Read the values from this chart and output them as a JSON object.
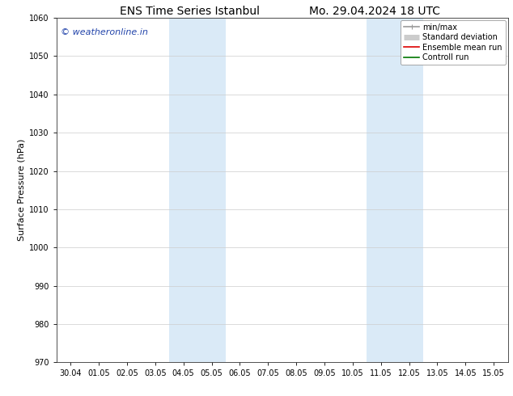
{
  "title_left": "ENS Time Series Istanbul",
  "title_right": "Mo. 29.04.2024 18 UTC",
  "ylabel": "Surface Pressure (hPa)",
  "ylim": [
    970,
    1060
  ],
  "yticks": [
    970,
    980,
    990,
    1000,
    1010,
    1020,
    1030,
    1040,
    1050,
    1060
  ],
  "x_labels": [
    "30.04",
    "01.05",
    "02.05",
    "03.05",
    "04.05",
    "05.05",
    "06.05",
    "07.05",
    "08.05",
    "09.05",
    "10.05",
    "11.05",
    "12.05",
    "13.05",
    "14.05",
    "15.05"
  ],
  "n_xticks": 16,
  "shaded_regions": [
    {
      "xmin": 4,
      "xmax": 6
    },
    {
      "xmin": 11,
      "xmax": 13
    }
  ],
  "shade_color": "#daeaf7",
  "watermark_text": "© weatheronline.in",
  "watermark_color": "#2244aa",
  "legend_entries": [
    {
      "label": "min/max",
      "color": "#999999",
      "lw": 1.2
    },
    {
      "label": "Standard deviation",
      "color": "#cccccc",
      "lw": 5
    },
    {
      "label": "Ensemble mean run",
      "color": "#dd0000",
      "lw": 1.2
    },
    {
      "label": "Controll run",
      "color": "#007700",
      "lw": 1.2
    }
  ],
  "grid_color": "#cccccc",
  "bg_color": "#ffffff",
  "title_fontsize": 10,
  "label_fontsize": 8,
  "tick_fontsize": 7,
  "watermark_fontsize": 8,
  "legend_fontsize": 7
}
